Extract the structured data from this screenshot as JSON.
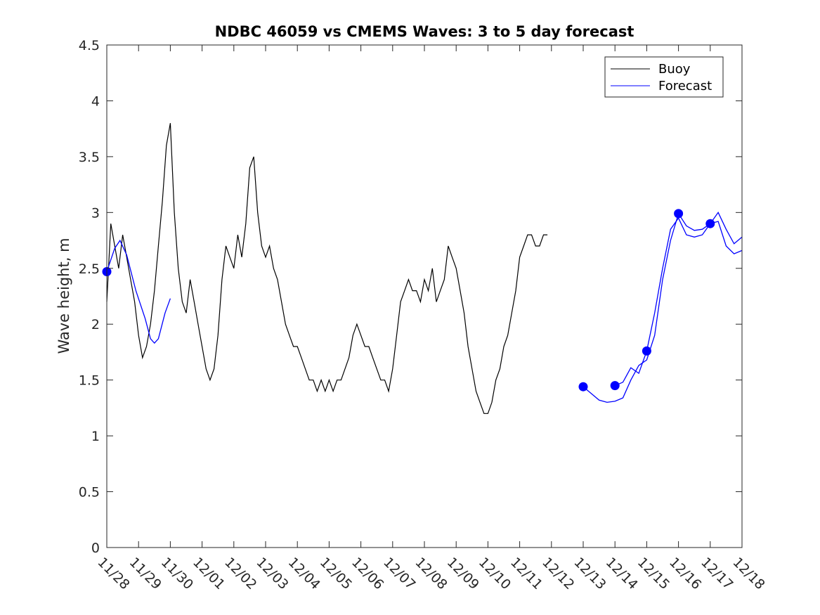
{
  "chart_data": {
    "type": "line",
    "title": "NDBC 46059 vs CMEMS Waves: 3 to 5 day forecast",
    "xlabel": "",
    "ylabel": "Wave height, m",
    "xlim": [
      "11/28",
      "12/18"
    ],
    "ylim": [
      0,
      4.5
    ],
    "x_ticks": [
      "11/28",
      "11/29",
      "11/30",
      "12/01",
      "12/02",
      "12/03",
      "12/04",
      "12/05",
      "12/06",
      "12/07",
      "12/08",
      "12/09",
      "12/10",
      "12/11",
      "12/12",
      "12/13",
      "12/14",
      "12/15",
      "12/16",
      "12/17",
      "12/18"
    ],
    "y_ticks": [
      "0",
      "0.5",
      "1",
      "1.5",
      "2",
      "2.5",
      "3",
      "3.5",
      "4",
      "4.5"
    ],
    "grid": false,
    "legend": {
      "position": "top-right",
      "entries": [
        "Buoy",
        "Forecast"
      ]
    },
    "colors": {
      "buoy": "#000000",
      "forecast": "#0000ff"
    },
    "series": [
      {
        "name": "Buoy",
        "color": "#000000",
        "points": [
          [
            "11/28 00:00",
            2.2
          ],
          [
            "11/28 03:00",
            2.9
          ],
          [
            "11/28 06:00",
            2.7
          ],
          [
            "11/28 09:00",
            2.5
          ],
          [
            "11/28 12:00",
            2.8
          ],
          [
            "11/28 15:00",
            2.6
          ],
          [
            "11/28 18:00",
            2.4
          ],
          [
            "11/28 21:00",
            2.2
          ],
          [
            "11/29 00:00",
            1.9
          ],
          [
            "11/29 03:00",
            1.7
          ],
          [
            "11/29 06:00",
            1.8
          ],
          [
            "11/29 09:00",
            2.0
          ],
          [
            "11/29 12:00",
            2.3
          ],
          [
            "11/29 15:00",
            2.7
          ],
          [
            "11/29 18:00",
            3.1
          ],
          [
            "11/29 21:00",
            3.6
          ],
          [
            "11/30 00:00",
            3.8
          ],
          [
            "11/30 03:00",
            3.0
          ],
          [
            "11/30 06:00",
            2.5
          ],
          [
            "11/30 09:00",
            2.2
          ],
          [
            "11/30 12:00",
            2.1
          ],
          [
            "11/30 15:00",
            2.4
          ],
          [
            "11/30 18:00",
            2.2
          ],
          [
            "11/30 21:00",
            2.0
          ],
          [
            "12/01 00:00",
            1.8
          ],
          [
            "12/01 03:00",
            1.6
          ],
          [
            "12/01 06:00",
            1.5
          ],
          [
            "12/01 09:00",
            1.6
          ],
          [
            "12/01 12:00",
            1.9
          ],
          [
            "12/01 15:00",
            2.4
          ],
          [
            "12/01 18:00",
            2.7
          ],
          [
            "12/01 21:00",
            2.6
          ],
          [
            "12/02 00:00",
            2.5
          ],
          [
            "12/02 03:00",
            2.8
          ],
          [
            "12/02 06:00",
            2.6
          ],
          [
            "12/02 09:00",
            2.9
          ],
          [
            "12/02 12:00",
            3.4
          ],
          [
            "12/02 15:00",
            3.5
          ],
          [
            "12/02 18:00",
            3.0
          ],
          [
            "12/02 21:00",
            2.7
          ],
          [
            "12/03 00:00",
            2.6
          ],
          [
            "12/03 03:00",
            2.7
          ],
          [
            "12/03 06:00",
            2.5
          ],
          [
            "12/03 09:00",
            2.4
          ],
          [
            "12/03 12:00",
            2.2
          ],
          [
            "12/03 15:00",
            2.0
          ],
          [
            "12/03 18:00",
            1.9
          ],
          [
            "12/03 21:00",
            1.8
          ],
          [
            "12/04 00:00",
            1.8
          ],
          [
            "12/04 03:00",
            1.7
          ],
          [
            "12/04 06:00",
            1.6
          ],
          [
            "12/04 09:00",
            1.5
          ],
          [
            "12/04 12:00",
            1.5
          ],
          [
            "12/04 15:00",
            1.4
          ],
          [
            "12/04 18:00",
            1.5
          ],
          [
            "12/04 21:00",
            1.4
          ],
          [
            "12/05 00:00",
            1.5
          ],
          [
            "12/05 03:00",
            1.4
          ],
          [
            "12/05 06:00",
            1.5
          ],
          [
            "12/05 09:00",
            1.5
          ],
          [
            "12/05 12:00",
            1.6
          ],
          [
            "12/05 15:00",
            1.7
          ],
          [
            "12/05 18:00",
            1.9
          ],
          [
            "12/05 21:00",
            2.0
          ],
          [
            "12/06 00:00",
            1.9
          ],
          [
            "12/06 03:00",
            1.8
          ],
          [
            "12/06 06:00",
            1.8
          ],
          [
            "12/06 09:00",
            1.7
          ],
          [
            "12/06 12:00",
            1.6
          ],
          [
            "12/06 15:00",
            1.5
          ],
          [
            "12/06 18:00",
            1.5
          ],
          [
            "12/06 21:00",
            1.4
          ],
          [
            "12/07 00:00",
            1.6
          ],
          [
            "12/07 03:00",
            1.9
          ],
          [
            "12/07 06:00",
            2.2
          ],
          [
            "12/07 09:00",
            2.3
          ],
          [
            "12/07 12:00",
            2.4
          ],
          [
            "12/07 15:00",
            2.3
          ],
          [
            "12/07 18:00",
            2.3
          ],
          [
            "12/07 21:00",
            2.2
          ],
          [
            "12/08 00:00",
            2.4
          ],
          [
            "12/08 03:00",
            2.3
          ],
          [
            "12/08 06:00",
            2.5
          ],
          [
            "12/08 09:00",
            2.2
          ],
          [
            "12/08 12:00",
            2.3
          ],
          [
            "12/08 15:00",
            2.4
          ],
          [
            "12/08 18:00",
            2.7
          ],
          [
            "12/08 21:00",
            2.6
          ],
          [
            "12/09 00:00",
            2.5
          ],
          [
            "12/09 03:00",
            2.3
          ],
          [
            "12/09 06:00",
            2.1
          ],
          [
            "12/09 09:00",
            1.8
          ],
          [
            "12/09 12:00",
            1.6
          ],
          [
            "12/09 15:00",
            1.4
          ],
          [
            "12/09 18:00",
            1.3
          ],
          [
            "12/09 21:00",
            1.2
          ],
          [
            "12/10 00:00",
            1.2
          ],
          [
            "12/10 03:00",
            1.3
          ],
          [
            "12/10 06:00",
            1.5
          ],
          [
            "12/10 09:00",
            1.6
          ],
          [
            "12/10 12:00",
            1.8
          ],
          [
            "12/10 15:00",
            1.9
          ],
          [
            "12/10 18:00",
            2.1
          ],
          [
            "12/10 21:00",
            2.3
          ],
          [
            "12/11 00:00",
            2.6
          ],
          [
            "12/11 03:00",
            2.7
          ],
          [
            "12/11 06:00",
            2.8
          ],
          [
            "12/11 09:00",
            2.8
          ],
          [
            "12/11 12:00",
            2.7
          ],
          [
            "12/11 15:00",
            2.7
          ],
          [
            "12/11 18:00",
            2.8
          ],
          [
            "12/11 21:00",
            2.8
          ]
        ]
      },
      {
        "name": "Forecast",
        "color": "#0000ff",
        "segments": [
          [
            [
              "11/28 00:00",
              2.47
            ],
            [
              "11/28 06:00",
              2.68
            ],
            [
              "11/28 10:00",
              2.75
            ],
            [
              "11/28 15:00",
              2.62
            ],
            [
              "11/28 22:00",
              2.3
            ],
            [
              "11/29 05:00",
              2.05
            ],
            [
              "11/29 09:00",
              1.87
            ],
            [
              "11/29 12:00",
              1.83
            ],
            [
              "11/29 15:00",
              1.87
            ],
            [
              "11/29 20:00",
              2.1
            ],
            [
              "11/30 00:00",
              2.23
            ]
          ],
          [
            [
              "12/13 00:00",
              1.44
            ],
            [
              "12/13 06:00",
              1.38
            ],
            [
              "12/13 12:00",
              1.32
            ],
            [
              "12/13 18:00",
              1.3
            ],
            [
              "12/14 00:00",
              1.31
            ],
            [
              "12/14 06:00",
              1.34
            ],
            [
              "12/14 12:00",
              1.5
            ],
            [
              "12/14 18:00",
              1.63
            ],
            [
              "12/15 00:00",
              1.68
            ],
            [
              "12/15 06:00",
              1.9
            ],
            [
              "12/15 12:00",
              2.4
            ],
            [
              "12/15 18:00",
              2.75
            ],
            [
              "12/16 00:00",
              2.99
            ],
            [
              "12/16 06:00",
              2.88
            ],
            [
              "12/16 12:00",
              2.84
            ],
            [
              "12/16 18:00",
              2.85
            ],
            [
              "12/17 00:00",
              2.9
            ],
            [
              "12/17 06:00",
              3.0
            ],
            [
              "12/17 12:00",
              2.85
            ],
            [
              "12/17 18:00",
              2.72
            ],
            [
              "12/18 00:00",
              2.78
            ]
          ],
          [
            [
              "12/14 00:00",
              1.45
            ],
            [
              "12/14 06:00",
              1.48
            ],
            [
              "12/14 12:00",
              1.61
            ],
            [
              "12/14 18:00",
              1.56
            ],
            [
              "12/15 00:00",
              1.76
            ],
            [
              "12/15 06:00",
              2.1
            ],
            [
              "12/15 12:00",
              2.5
            ],
            [
              "12/15 18:00",
              2.85
            ],
            [
              "12/16 00:00",
              2.95
            ],
            [
              "12/16 06:00",
              2.8
            ],
            [
              "12/16 12:00",
              2.78
            ],
            [
              "12/16 18:00",
              2.8
            ],
            [
              "12/17 00:00",
              2.9
            ],
            [
              "12/17 06:00",
              2.92
            ],
            [
              "12/17 12:00",
              2.7
            ],
            [
              "12/17 18:00",
              2.63
            ],
            [
              "12/18 00:00",
              2.66
            ]
          ]
        ],
        "markers": [
          [
            "11/28 00:00",
            2.47
          ],
          [
            "12/13 00:00",
            1.44
          ],
          [
            "12/14 00:00",
            1.45
          ],
          [
            "12/15 00:00",
            1.76
          ],
          [
            "12/16 00:00",
            2.99
          ],
          [
            "12/17 00:00",
            2.9
          ]
        ]
      }
    ]
  }
}
